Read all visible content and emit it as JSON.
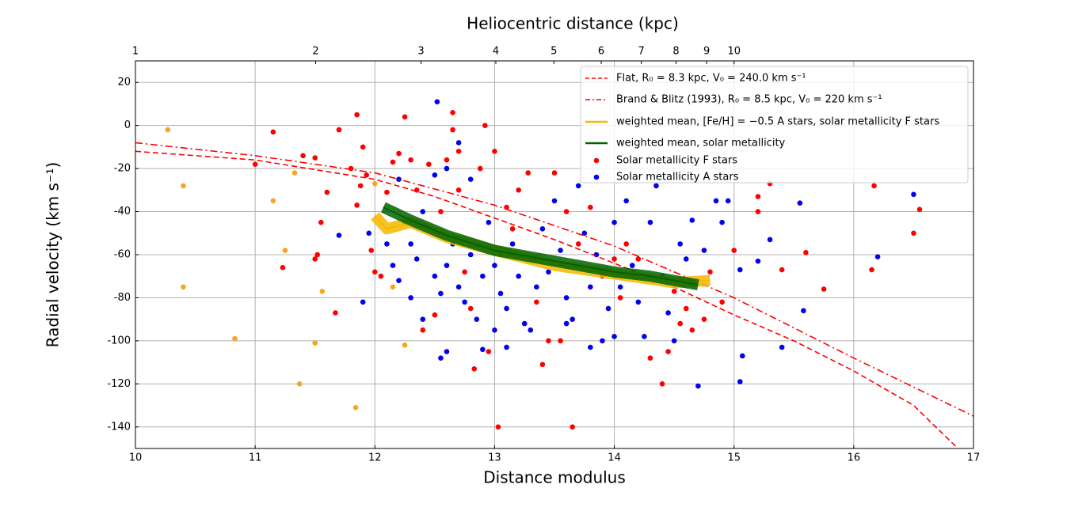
{
  "chart_data": {
    "type": "scatter",
    "xlabel": "Distance modulus",
    "ylabel": "Radial velocity (km s⁻¹)",
    "x2label": "Heliocentric distance (kpc)",
    "xlim": [
      10,
      17
    ],
    "ylim": [
      -150,
      30
    ],
    "xticks": [
      10,
      11,
      12,
      13,
      14,
      15,
      16,
      17
    ],
    "yticks": [
      -140,
      -120,
      -100,
      -80,
      -60,
      -40,
      -20,
      0,
      20
    ],
    "x2ticks": [
      1,
      2,
      3,
      4,
      5,
      6,
      7,
      8,
      9,
      10
    ],
    "grid": true,
    "legend": "upper right",
    "series": [
      {
        "color": "#f5a623",
        "mode": "markers",
        "x": [
          10.27,
          10.4,
          10.4,
          10.83,
          11.15,
          11.25,
          11.33,
          11.37,
          11.5,
          11.56,
          11.84,
          12.15,
          12.25,
          12.0
        ],
        "values": [
          -2,
          -28,
          -75,
          -99,
          -35,
          -58,
          -22,
          -120,
          -101,
          -77,
          -131,
          -75,
          -102,
          -27
        ]
      },
      {
        "name": "Solar metallicity F stars",
        "color": "#ff0000",
        "mode": "markers",
        "x": [
          11.85,
          11.9,
          11.15,
          11.0,
          11.4,
          11.5,
          11.6,
          11.55,
          11.5,
          11.52,
          11.23,
          11.67,
          11.7,
          11.8,
          11.85,
          11.88,
          11.93,
          11.97,
          12.0,
          12.05,
          12.1,
          12.15,
          12.2,
          12.25,
          12.3,
          12.35,
          12.4,
          12.45,
          12.5,
          12.55,
          12.6,
          12.65,
          12.65,
          12.7,
          12.7,
          12.75,
          12.8,
          12.83,
          12.88,
          12.92,
          12.95,
          13.0,
          13.03,
          13.05,
          13.1,
          13.15,
          13.2,
          13.28,
          13.35,
          13.4,
          13.45,
          13.5,
          13.55,
          13.6,
          13.65,
          13.7,
          13.8,
          13.9,
          14.0,
          14.05,
          14.1,
          14.2,
          14.3,
          14.4,
          14.45,
          14.5,
          14.55,
          14.6,
          14.65,
          14.75,
          14.8,
          14.9,
          15.0,
          15.2,
          15.2,
          15.3,
          15.4,
          15.6,
          15.75,
          16.15,
          16.17,
          16.5,
          16.55
        ],
        "values": [
          5,
          -10,
          -3,
          -18,
          -14,
          -15,
          -31,
          -45,
          -62,
          -60,
          -66,
          -87,
          -2,
          -20,
          -37,
          -28,
          -23,
          -58,
          -68,
          -70,
          -31,
          -17,
          -13,
          4,
          -16,
          -30,
          -95,
          -18,
          -88,
          -40,
          -16,
          6,
          -2,
          -12,
          -30,
          -68,
          -85,
          -113,
          -20,
          0,
          -105,
          -12,
          -140,
          -60,
          -38,
          -48,
          -30,
          -22,
          -82,
          -111,
          -100,
          -22,
          -100,
          -40,
          -140,
          -55,
          -38,
          -70,
          -62,
          -80,
          -55,
          -62,
          -108,
          -120,
          -105,
          -77,
          -92,
          -85,
          -95,
          -90,
          -68,
          -82,
          -58,
          -40,
          -33,
          -27,
          -67,
          -59,
          -76,
          -67,
          -28,
          -50,
          -39
        ]
      },
      {
        "name": "Solar metallicity A stars",
        "color": "#0000ee",
        "mode": "markers",
        "x": [
          12.52,
          12.6,
          12.7,
          12.8,
          12.5,
          12.2,
          12.25,
          12.3,
          12.35,
          12.4,
          12.45,
          12.5,
          12.55,
          12.6,
          12.65,
          12.7,
          12.75,
          12.8,
          12.85,
          12.9,
          12.95,
          13.0,
          13.05,
          13.1,
          13.15,
          13.2,
          13.25,
          13.3,
          13.35,
          13.4,
          13.45,
          13.5,
          13.55,
          13.6,
          13.65,
          13.7,
          13.75,
          13.8,
          13.85,
          13.9,
          13.95,
          14.0,
          14.05,
          14.1,
          14.15,
          14.2,
          14.25,
          14.3,
          14.35,
          14.4,
          14.45,
          14.5,
          14.55,
          14.6,
          14.65,
          14.7,
          14.75,
          14.85,
          14.9,
          14.95,
          15.05,
          15.07,
          15.05,
          15.2,
          15.3,
          15.4,
          15.55,
          15.58,
          16.2,
          16.5,
          11.9,
          11.95,
          11.7,
          12.1,
          12.15,
          12.2,
          12.3,
          12.4,
          12.55,
          12.6,
          12.9,
          13.0,
          13.1,
          13.3,
          13.6,
          13.8,
          14.0
        ],
        "values": [
          11,
          -20,
          -8,
          -25,
          -23,
          -25,
          -45,
          -55,
          -62,
          -40,
          -48,
          -70,
          -78,
          -65,
          -55,
          -75,
          -82,
          -60,
          -90,
          -70,
          -45,
          -65,
          -78,
          -85,
          -55,
          -70,
          -92,
          -62,
          -75,
          -48,
          -68,
          -35,
          -58,
          -80,
          -90,
          -28,
          -50,
          -75,
          -60,
          -100,
          -85,
          -45,
          -75,
          -35,
          -65,
          -82,
          -98,
          -45,
          -28,
          -70,
          -87,
          -100,
          -55,
          -62,
          -44,
          -121,
          -58,
          -35,
          -45,
          -35,
          -67,
          -107,
          -119,
          -63,
          -53,
          -103,
          -36,
          -86,
          -61,
          -32,
          -82,
          -50,
          -51,
          -55,
          -65,
          -72,
          -80,
          -90,
          -108,
          -105,
          -104,
          -95,
          -103,
          -95,
          -92,
          -103,
          -98
        ]
      },
      {
        "name": "Flat, R₀ = 8.3 kpc, V₀ = 240.0 km s⁻¹",
        "color": "#ff0000",
        "mode": "line",
        "dash": "dashed",
        "x": [
          10,
          11,
          12,
          12.5,
          13,
          13.5,
          14,
          14.5,
          15,
          15.5,
          16,
          16.5,
          16.87
        ],
        "values": [
          -12,
          -16,
          -25,
          -33,
          -43,
          -53,
          -64,
          -75,
          -88,
          -100,
          -114,
          -130,
          -150
        ]
      },
      {
        "name": "Brand & Blitz (1993), R₀ = 8.5 kpc, V₀ = 220 km s⁻¹",
        "color": "#ff0000",
        "mode": "line",
        "dash": "dashdot",
        "x": [
          10,
          11,
          12,
          13,
          14,
          15,
          16,
          17
        ],
        "values": [
          -8,
          -14,
          -22,
          -37,
          -56,
          -80,
          -108,
          -135
        ]
      },
      {
        "name": "weighted mean, [Fe/H] = −0.5 A stars, solar metallicity F stars",
        "color": "#f5b800",
        "mode": "band",
        "x": [
          12.0,
          12.1,
          12.3,
          12.6,
          13.0,
          13.5,
          14.0,
          14.5,
          14.8
        ],
        "values": [
          -42,
          -48,
          -45,
          -52,
          -58,
          -65,
          -69,
          -73,
          -72
        ]
      },
      {
        "name": "weighted mean, solar metallicity",
        "color": "#006400",
        "mode": "band",
        "x": [
          12.07,
          12.3,
          12.6,
          13.0,
          13.3,
          13.6,
          14.0,
          14.3,
          14.7
        ],
        "values": [
          -38,
          -44,
          -51,
          -58,
          -61,
          -64,
          -68,
          -70,
          -74
        ]
      }
    ]
  }
}
